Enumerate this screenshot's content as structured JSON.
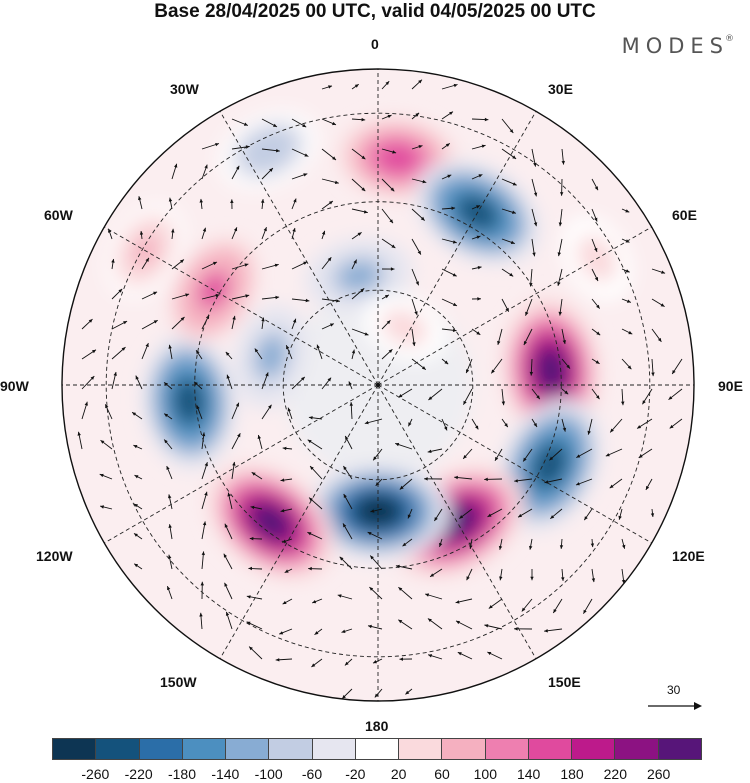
{
  "header": {
    "title": "Base 28/04/2025 00 UTC, valid 04/05/2025 00 UTC",
    "brand": "MODES",
    "brand_mark": "®"
  },
  "map": {
    "projection": "south-polar-stereographic",
    "longitude_labels": {
      "top": "0",
      "top_right": "30E",
      "right_upper": "60E",
      "right": "90E",
      "right_lower": "120E",
      "bottom_right": "150E",
      "bottom": "180",
      "bottom_left": "150W",
      "left_lower": "120W",
      "left": "90W",
      "left_upper": "60W",
      "top_left": "30W"
    },
    "reference_vector": {
      "value": "30"
    }
  },
  "colorbar": {
    "labels": [
      "-260",
      "-220",
      "-180",
      "-140",
      "-100",
      "-60",
      "-20",
      "20",
      "60",
      "100",
      "140",
      "180",
      "220",
      "260"
    ],
    "colors": [
      "#0d3553",
      "#14527c",
      "#2b6ea8",
      "#4c8fc0",
      "#88acd3",
      "#c2cde3",
      "#e6e6f0",
      "#ffffff",
      "#fadadd",
      "#f5b0c0",
      "#ee7fb0",
      "#e04a9e",
      "#bd1a8b",
      "#8c1282",
      "#571579"
    ]
  },
  "anomalies": [
    {
      "lon": 5,
      "r": 0.72,
      "value": 160
    },
    {
      "lon": 30,
      "r": 0.63,
      "value": -230
    },
    {
      "lon": 60,
      "r": 0.8,
      "value": 40
    },
    {
      "lon": 85,
      "r": 0.55,
      "value": 270
    },
    {
      "lon": 115,
      "r": 0.6,
      "value": -250
    },
    {
      "lon": 150,
      "r": 0.5,
      "value": 270
    },
    {
      "lon": 180,
      "r": 0.4,
      "value": -270
    },
    {
      "lon": 218,
      "r": 0.55,
      "value": 260
    },
    {
      "lon": 265,
      "r": 0.6,
      "value": -240
    },
    {
      "lon": 300,
      "r": 0.6,
      "value": 140
    },
    {
      "lon": 300,
      "r": 0.85,
      "value": 80
    },
    {
      "lon": 335,
      "r": 0.82,
      "value": -100
    },
    {
      "lon": 350,
      "r": 0.35,
      "value": -120
    },
    {
      "lon": 285,
      "r": 0.35,
      "value": -110
    },
    {
      "lon": 25,
      "r": 0.2,
      "value": 30
    }
  ]
}
